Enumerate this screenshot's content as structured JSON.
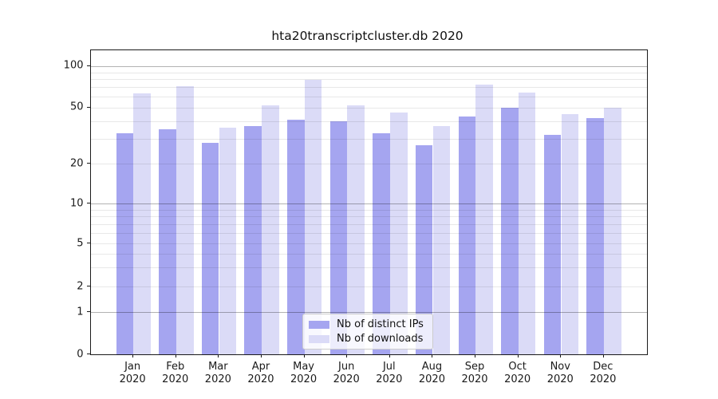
{
  "chart_data": {
    "type": "bar",
    "title": "hta20transcriptcluster.db 2020",
    "year": "2020",
    "categories": [
      "Jan",
      "Feb",
      "Mar",
      "Apr",
      "May",
      "Jun",
      "Jul",
      "Aug",
      "Sep",
      "Oct",
      "Nov",
      "Dec"
    ],
    "x_tick_labels": [
      {
        "line1": "Jan",
        "line2": "2020"
      },
      {
        "line1": "Feb",
        "line2": "2020"
      },
      {
        "line1": "Mar",
        "line2": "2020"
      },
      {
        "line1": "Apr",
        "line2": "2020"
      },
      {
        "line1": "May",
        "line2": "2020"
      },
      {
        "line1": "Jun",
        "line2": "2020"
      },
      {
        "line1": "Jul",
        "line2": "2020"
      },
      {
        "line1": "Aug",
        "line2": "2020"
      },
      {
        "line1": "Sep",
        "line2": "2020"
      },
      {
        "line1": "Oct",
        "line2": "2020"
      },
      {
        "line1": "Nov",
        "line2": "2020"
      },
      {
        "line1": "Dec",
        "line2": "2020"
      }
    ],
    "series": [
      {
        "name": "Nb of distinct IPs",
        "color": "#a5a5f0",
        "values": [
          33,
          35,
          28,
          37,
          41,
          40,
          33,
          27,
          43,
          50,
          32,
          42
        ]
      },
      {
        "name": "Nb of downloads",
        "color": "#dbdbf7",
        "values": [
          63,
          71,
          36,
          52,
          80,
          52,
          46,
          37,
          73,
          64,
          45,
          50
        ]
      }
    ],
    "yaxis": {
      "scale": "symlog",
      "ticks": [
        0,
        1,
        2,
        5,
        10,
        20,
        50,
        100
      ],
      "major_grid_at": [
        1,
        10,
        100
      ],
      "minor_grid_at": [
        2,
        3,
        4,
        5,
        6,
        7,
        8,
        9,
        20,
        30,
        40,
        50,
        60,
        70,
        80,
        90
      ],
      "ylim": [
        0,
        120
      ]
    },
    "grid": true,
    "legend_position": "lower center"
  },
  "colors": {
    "bar_distinct_ips": "#a5a5f0",
    "bar_downloads": "#dbdbf7",
    "major_grid": "#b3b3b3",
    "minor_grid": "#e8e8e8",
    "spine": "#1a1a1a",
    "background": "#ffffff"
  }
}
